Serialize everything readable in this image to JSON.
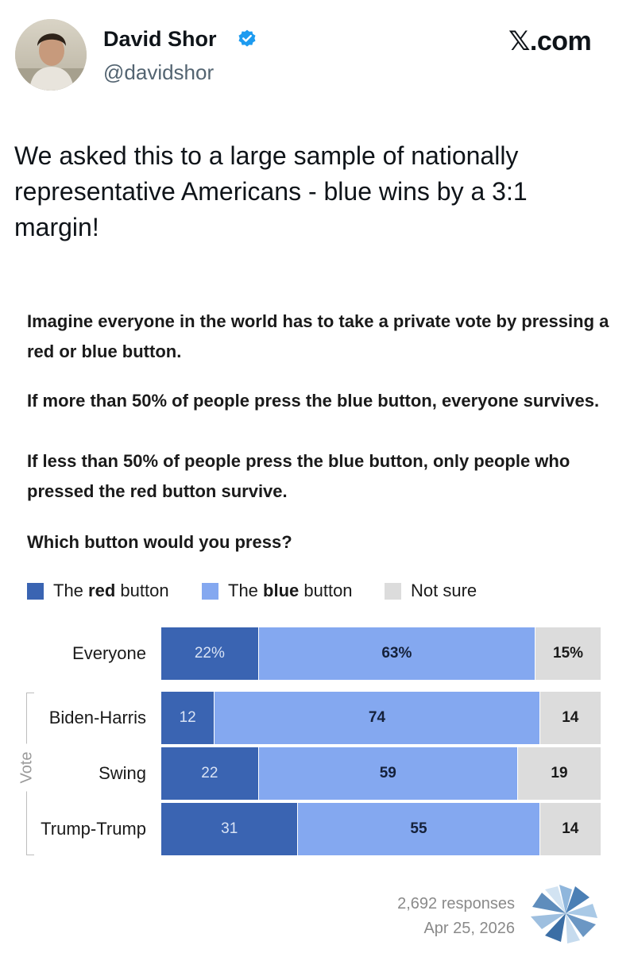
{
  "author": {
    "name": "David Shor",
    "handle": "@davidshor",
    "verified": true
  },
  "site_label": "𝕏.com",
  "tweet_text": "We asked this to a large sample of nationally representative Americans - blue wins by a 3:1 margin!",
  "question": {
    "p1": "Imagine everyone in the world has to take a private vote by pressing a red or blue button.",
    "p2a": "If more than 50% of people press the blue button, everyone survives.",
    "p2b": "If less than 50% of people press the blue button, only people who pressed the red button survive.",
    "p3": "Which button would you press?"
  },
  "legend": {
    "red_pre": "The ",
    "red_bold": "red",
    "red_post": " button",
    "blue_pre": "The ",
    "blue_bold": "blue",
    "blue_post": " button",
    "ns": "Not sure"
  },
  "colors": {
    "red_button": "#3a64b2",
    "blue_button": "#84a8f0",
    "not_sure": "#dcdcdc"
  },
  "chart_data": {
    "type": "bar",
    "orientation": "horizontal-stacked-100",
    "categories": [
      "Everyone",
      "Biden-Harris",
      "Swing",
      "Trump-Trump"
    ],
    "group_label": "Vote",
    "series": [
      {
        "name": "The red button",
        "values": [
          22,
          12,
          22,
          31
        ],
        "labels": [
          "22%",
          "12",
          "22",
          "31"
        ]
      },
      {
        "name": "The blue button",
        "values": [
          63,
          74,
          59,
          55
        ],
        "labels": [
          "63%",
          "74",
          "59",
          "55"
        ]
      },
      {
        "name": "Not sure",
        "values": [
          15,
          14,
          19,
          14
        ],
        "labels": [
          "15%",
          "14",
          "19",
          "14"
        ]
      }
    ]
  },
  "footer": {
    "responses": "2,692 responses",
    "date": "Apr 25, 2026"
  }
}
